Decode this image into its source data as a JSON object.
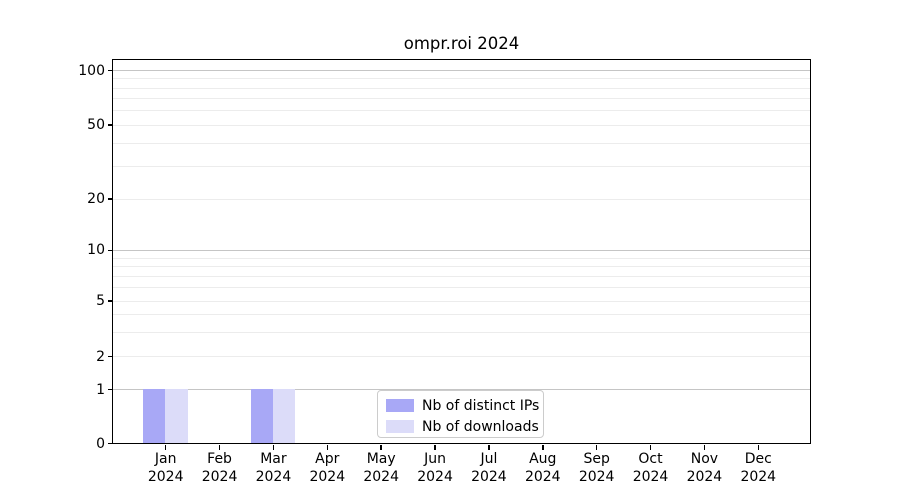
{
  "chart_data": {
    "type": "bar",
    "title": "ompr.roi 2024",
    "categories": [
      "Jan",
      "Feb",
      "Mar",
      "Apr",
      "May",
      "Jun",
      "Jul",
      "Aug",
      "Sep",
      "Oct",
      "Nov",
      "Dec"
    ],
    "tick_second_line": "2024",
    "series": [
      {
        "name": "Nb of distinct IPs",
        "color": "#a8a8f6",
        "values": [
          1,
          0,
          1,
          0,
          0,
          0,
          0,
          0,
          0,
          0,
          0,
          0
        ]
      },
      {
        "name": "Nb of downloads",
        "color": "#dcdcf9",
        "values": [
          1,
          0,
          1,
          0,
          0,
          0,
          0,
          0,
          0,
          0,
          0,
          0
        ]
      }
    ],
    "xlabel": "",
    "ylabel": "",
    "yscale": "log1p",
    "ylim": [
      0,
      114
    ],
    "yticks": [
      0,
      1,
      2,
      5,
      10,
      20,
      50,
      100
    ],
    "major_gridline_values": [
      1,
      10,
      100
    ],
    "minor_gridline_values": [
      2,
      3,
      4,
      5,
      6,
      7,
      8,
      9,
      20,
      30,
      40,
      50,
      60,
      70,
      80,
      90
    ],
    "grid": true,
    "legend_position": "lower center"
  },
  "colors": {
    "background": "#ffffff",
    "spine": "#000000",
    "major_grid": "#c5c5c5",
    "minor_grid": "#ececec",
    "legend_border": "#cccccc",
    "distinct_ips": "#a8a8f6",
    "downloads": "#dcdcf9"
  }
}
